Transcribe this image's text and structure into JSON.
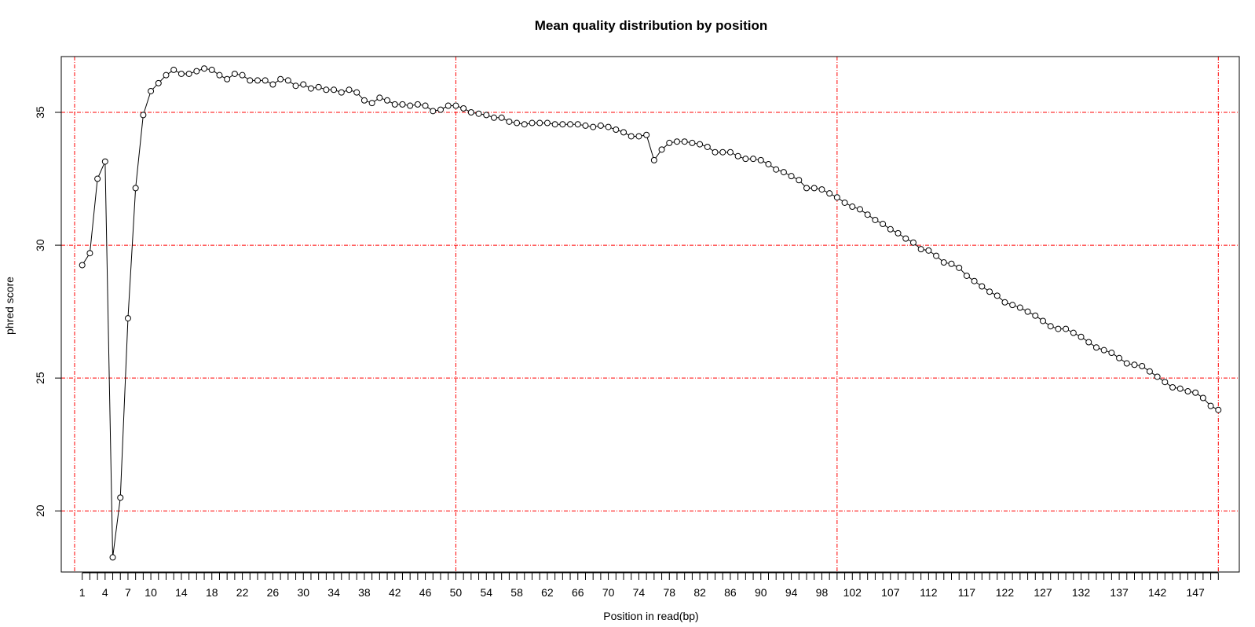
{
  "chart_data": {
    "type": "line",
    "title": "Mean quality distribution by position",
    "xlabel": "Position in read(bp)",
    "ylabel": "phred score",
    "xlim": [
      1,
      150
    ],
    "ylim": [
      17.7,
      37.1
    ],
    "x_tick_labels": [
      "1",
      "4",
      "7",
      "10",
      "14",
      "18",
      "22",
      "26",
      "30",
      "34",
      "38",
      "42",
      "46",
      "50",
      "54",
      "58",
      "62",
      "66",
      "70",
      "74",
      "78",
      "82",
      "86",
      "90",
      "94",
      "98",
      "102",
      "107",
      "112",
      "117",
      "122",
      "127",
      "132",
      "137",
      "142",
      "147"
    ],
    "y_ticks": [
      20,
      25,
      30,
      35
    ],
    "grid": {
      "color": "#ff0000",
      "style": "dashed",
      "x": [
        0,
        50,
        100,
        150
      ],
      "y": [
        20,
        25,
        30,
        35
      ]
    },
    "series": [
      {
        "marker": "open-circle",
        "color": "#000000",
        "x": [
          1,
          2,
          3,
          4,
          5,
          6,
          7,
          8,
          9,
          10,
          11,
          12,
          13,
          14,
          15,
          16,
          17,
          18,
          19,
          20,
          21,
          22,
          23,
          24,
          25,
          26,
          27,
          28,
          29,
          30,
          31,
          32,
          33,
          34,
          35,
          36,
          37,
          38,
          39,
          40,
          41,
          42,
          43,
          44,
          45,
          46,
          47,
          48,
          49,
          50,
          51,
          52,
          53,
          54,
          55,
          56,
          57,
          58,
          59,
          60,
          61,
          62,
          63,
          64,
          65,
          66,
          67,
          68,
          69,
          70,
          71,
          72,
          73,
          74,
          75,
          76,
          77,
          78,
          79,
          80,
          81,
          82,
          83,
          84,
          85,
          86,
          87,
          88,
          89,
          90,
          91,
          92,
          93,
          94,
          95,
          96,
          97,
          98,
          99,
          100,
          101,
          102,
          103,
          104,
          105,
          106,
          107,
          108,
          109,
          110,
          111,
          112,
          113,
          114,
          115,
          116,
          117,
          118,
          119,
          120,
          121,
          122,
          123,
          124,
          125,
          126,
          127,
          128,
          129,
          130,
          131,
          132,
          133,
          134,
          135,
          136,
          137,
          138,
          139,
          140,
          141,
          142,
          143,
          144,
          145,
          146,
          147,
          148,
          149,
          150
        ],
        "values": [
          29.25,
          29.7,
          32.5,
          33.15,
          18.25,
          20.5,
          27.25,
          32.15,
          34.9,
          35.8,
          36.1,
          36.4,
          36.6,
          36.45,
          36.45,
          36.55,
          36.65,
          36.6,
          36.4,
          36.25,
          36.45,
          36.4,
          36.2,
          36.2,
          36.2,
          36.05,
          36.25,
          36.2,
          36.0,
          36.05,
          35.9,
          35.95,
          35.85,
          35.85,
          35.75,
          35.85,
          35.75,
          35.45,
          35.35,
          35.55,
          35.45,
          35.3,
          35.3,
          35.25,
          35.3,
          35.25,
          35.05,
          35.1,
          35.25,
          35.25,
          35.15,
          35.0,
          34.95,
          34.9,
          34.8,
          34.8,
          34.65,
          34.6,
          34.55,
          34.6,
          34.6,
          34.6,
          34.55,
          34.55,
          34.55,
          34.55,
          34.5,
          34.45,
          34.5,
          34.45,
          34.35,
          34.25,
          34.1,
          34.1,
          34.15,
          33.2,
          33.6,
          33.85,
          33.9,
          33.9,
          33.85,
          33.8,
          33.7,
          33.5,
          33.5,
          33.5,
          33.35,
          33.25,
          33.25,
          33.2,
          33.05,
          32.85,
          32.75,
          32.6,
          32.45,
          32.15,
          32.15,
          32.1,
          31.95,
          31.8,
          31.6,
          31.45,
          31.35,
          31.15,
          30.95,
          30.8,
          30.6,
          30.45,
          30.25,
          30.1,
          29.85,
          29.8,
          29.6,
          29.35,
          29.3,
          29.15,
          28.85,
          28.65,
          28.45,
          28.25,
          28.1,
          27.85,
          27.75,
          27.65,
          27.5,
          27.35,
          27.15,
          26.95,
          26.85,
          26.85,
          26.7,
          26.55,
          26.35,
          26.15,
          26.05,
          25.95,
          25.75,
          25.55,
          25.5,
          25.45,
          25.25,
          25.05,
          24.85,
          24.65,
          24.6,
          24.5,
          24.45,
          24.25,
          23.95,
          23.8
        ]
      }
    ]
  }
}
